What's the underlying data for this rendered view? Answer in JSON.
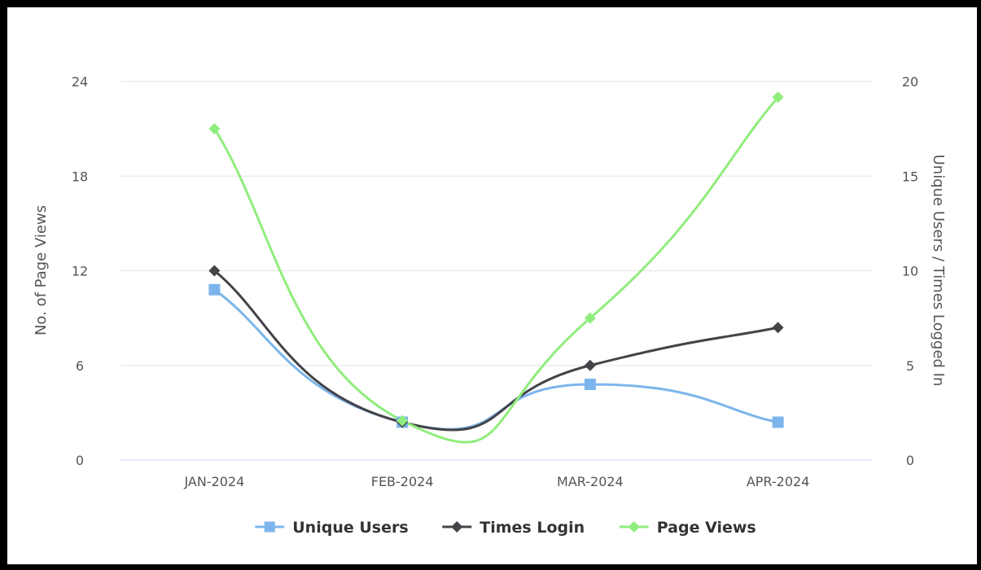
{
  "chart_data": {
    "type": "line",
    "categories": [
      "JAN-2024",
      "FEB-2024",
      "MAR-2024",
      "APR-2024"
    ],
    "y_left": {
      "label": "No. of Page Views",
      "range": [
        0,
        24
      ],
      "ticks": [
        0,
        6,
        12,
        18,
        24
      ]
    },
    "y_right": {
      "label": "Unique Users / Times Logged In",
      "range": [
        0,
        20
      ],
      "ticks": [
        0,
        5,
        10,
        15,
        20
      ]
    },
    "series": [
      {
        "name": "Unique Users",
        "axis": "right",
        "marker": "square",
        "color": "#7cb5ec",
        "values": [
          9,
          2,
          4,
          2
        ]
      },
      {
        "name": "Times Login",
        "axis": "right",
        "marker": "diamond",
        "color": "#434348",
        "values": [
          10,
          2,
          5,
          7
        ]
      },
      {
        "name": "Page Views",
        "axis": "left",
        "marker": "diamond",
        "color": "#90ed7d",
        "values": [
          21,
          2.5,
          9,
          23
        ]
      }
    ],
    "grid": true,
    "legend_position": "bottom-center"
  }
}
